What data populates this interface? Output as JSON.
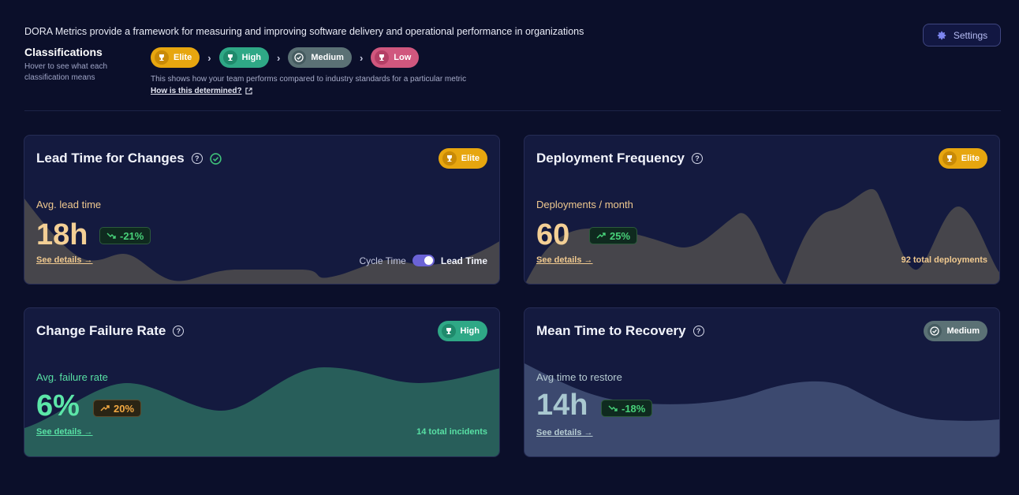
{
  "intro": "DORA Metrics provide a framework for measuring and improving software delivery and operational performance in organizations",
  "settings": {
    "label": "Settings",
    "icon": "gear-icon"
  },
  "classifications": {
    "title": "Classifications",
    "subtitle": "Hover to see what each classification means",
    "levels": [
      {
        "label": "Elite",
        "icon": "trophy-icon",
        "color": "#e7a60f"
      },
      {
        "label": "High",
        "icon": "trophy-icon",
        "color": "#2fa886"
      },
      {
        "label": "Medium",
        "icon": "check-circle-icon",
        "color": "#5b7175"
      },
      {
        "label": "Low",
        "icon": "trophy-icon",
        "color": "#d0577e"
      }
    ],
    "explain": "This shows how your team performs compared to industry standards for a particular metric",
    "how_link": "How is this determined?"
  },
  "cards": {
    "lead": {
      "title": "Lead Time for Changes",
      "badge": "Elite",
      "label": "Avg. lead time",
      "value": "18h",
      "delta": "-21%",
      "details": "See details →",
      "toggle_left": "Cycle Time",
      "toggle_right": "Lead Time",
      "toggle_on": true,
      "accent": "#f0c98f"
    },
    "deploy": {
      "title": "Deployment Frequency",
      "badge": "Elite",
      "label": "Deployments / month",
      "value": "60",
      "delta": "25%",
      "details": "See details →",
      "footer": "92 total deployments",
      "accent": "#f0c98f"
    },
    "failure": {
      "title": "Change Failure Rate",
      "badge": "High",
      "label": "Avg. failure rate",
      "value": "6%",
      "delta": "20%",
      "details": "See details →",
      "footer": "14 total incidents",
      "accent": "#58e0a4"
    },
    "recovery": {
      "title": "Mean Time to Recovery",
      "badge": "Medium",
      "label": "Avg time to restore",
      "value": "14h",
      "delta": "-18%",
      "details": "See details →",
      "accent": "#a9c8d0"
    }
  }
}
